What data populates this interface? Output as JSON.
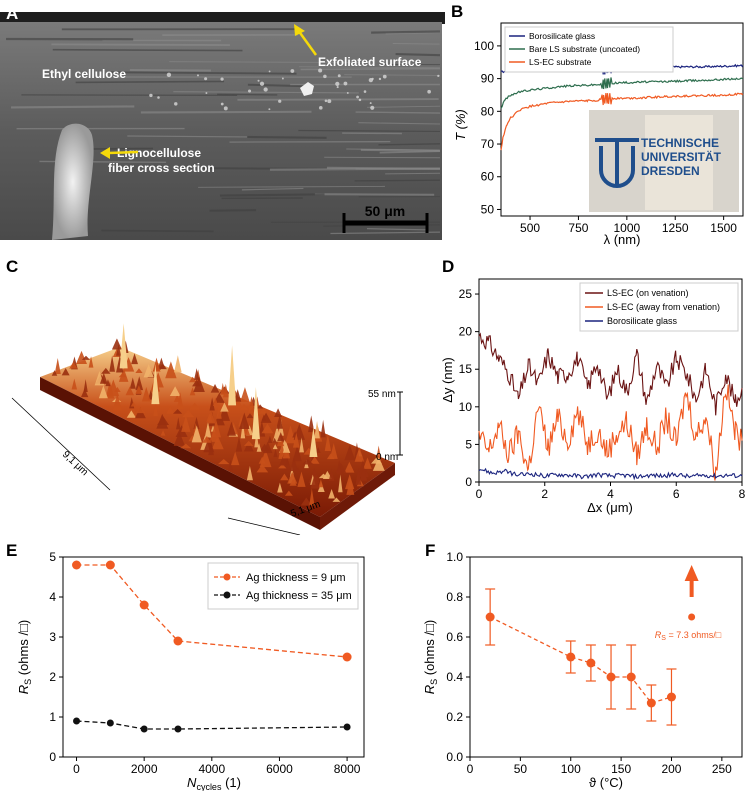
{
  "panel_labels": {
    "a": "A",
    "b": "B",
    "c": "C",
    "d": "D",
    "e": "E",
    "f": "F"
  },
  "panel_a": {
    "labels": {
      "ethyl_cellulose": "Ethyl cellulose",
      "exfoliated": "Exfoliated surface",
      "fiber_line1": "Lignocellulose",
      "fiber_line2": "fiber cross section",
      "scale_bar": "50 μm"
    },
    "arrow_color": "#f5d90a"
  },
  "panel_c": {
    "labels": {
      "z_top": "55 nm",
      "z_bottom": "0 nm",
      "x_len": "5,1 μm",
      "y_len": "9,1 μm"
    },
    "colors": {
      "low": "#7a1a05",
      "mid": "#c8501a",
      "high": "#f6cf8a"
    }
  },
  "panel_b_inset": {
    "line1": "TECHNISCHE",
    "line2": "UNIVERSITÄT",
    "line3": "DRESDEN"
  },
  "chart_data": [
    {
      "id": "B",
      "type": "line",
      "xlabel": "λ (nm)",
      "ylabel": "T (%)",
      "xlim": [
        350,
        1600
      ],
      "ylim": [
        48,
        107
      ],
      "xticks": [
        "500",
        "750",
        "1000",
        "1250",
        "1500"
      ],
      "yticks": [
        "50",
        "60",
        "70",
        "80",
        "90",
        "100"
      ],
      "legend_position": "top-left",
      "series": [
        {
          "name": "Borosilicate glass",
          "color": "#1a237e",
          "x": [
            350,
            400,
            500,
            600,
            700,
            800,
            880,
            900,
            1000,
            1100,
            1200,
            1300,
            1400,
            1500,
            1600
          ],
          "y": [
            92,
            92.6,
            92.8,
            93.0,
            93.0,
            93.1,
            93.1,
            93.3,
            93.3,
            93.5,
            93.5,
            93.6,
            93.6,
            93.8,
            94.0
          ]
        },
        {
          "name": "Bare LS substrate (uncoated)",
          "color": "#2e6e4e",
          "x": [
            350,
            370,
            400,
            450,
            500,
            600,
            700,
            800,
            880,
            900,
            1000,
            1100,
            1200,
            1300,
            1400,
            1500,
            1600
          ],
          "y": [
            81,
            83.5,
            85,
            86,
            86.5,
            87.2,
            87.8,
            88.0,
            88.3,
            88.6,
            88.8,
            89.0,
            89.1,
            89.3,
            89.5,
            89.8,
            90.0
          ]
        },
        {
          "name": "LS-EC substrate",
          "color": "#f05a22",
          "x": [
            350,
            360,
            380,
            400,
            450,
            500,
            600,
            700,
            800,
            880,
            900,
            1000,
            1100,
            1200,
            1300,
            1400,
            1500,
            1600
          ],
          "y": [
            68,
            72,
            76,
            78,
            80.5,
            81.5,
            82.5,
            83.0,
            83.2,
            83.6,
            84.0,
            84.0,
            84.2,
            84.5,
            84.7,
            84.8,
            85.0,
            85.3
          ]
        }
      ]
    },
    {
      "id": "D",
      "type": "line",
      "xlabel": "Δx (μm)",
      "ylabel": "Δy (nm)",
      "xlim": [
        0,
        8
      ],
      "ylim": [
        0,
        27
      ],
      "xticks": [
        "0",
        "2",
        "4",
        "6",
        "8"
      ],
      "yticks": [
        "0",
        "5",
        "10",
        "15",
        "20",
        "25"
      ],
      "legend_position": "top-right",
      "series": [
        {
          "name": "LS-EC (on venation)",
          "color": "#6b1414",
          "x": [
            0,
            0.3,
            0.6,
            0.9,
            1.2,
            1.5,
            1.8,
            2.1,
            2.4,
            2.7,
            3.0,
            3.3,
            3.6,
            3.9,
            4.2,
            4.5,
            4.8,
            5.1,
            5.4,
            5.7,
            6.0,
            6.3,
            6.6,
            6.9,
            7.2,
            7.5,
            7.8,
            8.0
          ],
          "y": [
            19.5,
            18.5,
            16.5,
            14.5,
            11.0,
            15.5,
            13.0,
            17.0,
            14.0,
            14.5,
            16.5,
            12.5,
            16.0,
            11.0,
            15.0,
            12.0,
            17.0,
            10.5,
            15.5,
            12.5,
            16.5,
            14.5,
            11.0,
            15.0,
            10.0,
            14.5,
            10.5,
            12.5
          ]
        },
        {
          "name": "LS-EC (away from venation)",
          "color": "#f05a22",
          "x": [
            0,
            0.3,
            0.6,
            0.9,
            1.2,
            1.5,
            1.8,
            2.1,
            2.4,
            2.7,
            3.0,
            3.3,
            3.6,
            3.9,
            4.2,
            4.5,
            4.8,
            5.1,
            5.4,
            5.7,
            6.0,
            6.3,
            6.6,
            6.9,
            7.2,
            7.5,
            7.8,
            8.0
          ],
          "y": [
            6.0,
            4.0,
            7.5,
            3.5,
            6.5,
            1.5,
            10.0,
            4.5,
            8.5,
            5.5,
            9.5,
            5.0,
            7.0,
            4.0,
            6.5,
            8.0,
            3.5,
            7.5,
            4.5,
            8.5,
            5.0,
            12.0,
            6.0,
            9.0,
            1.0,
            13.0,
            6.5,
            5.5
          ]
        },
        {
          "name": "Borosilicate glass",
          "color": "#1a237e",
          "x": [
            0,
            0.4,
            0.8,
            1.2,
            1.6,
            2.0,
            2.4,
            2.8,
            3.2,
            3.6,
            4.0,
            4.4,
            4.8,
            5.2,
            5.6,
            6.0,
            6.4,
            6.8,
            7.2,
            7.6,
            8.0
          ],
          "y": [
            1.8,
            1.2,
            1.4,
            0.9,
            1.1,
            0.8,
            1.0,
            0.9,
            0.7,
            1.0,
            0.8,
            0.9,
            0.7,
            0.9,
            0.8,
            1.0,
            0.7,
            0.9,
            0.8,
            0.9,
            0.8
          ]
        }
      ]
    },
    {
      "id": "E",
      "type": "line",
      "xlabel_main": "N",
      "xlabel_sub": "cycles",
      "xlabel_tail": " (1)",
      "ylabel_main": "R",
      "ylabel_sub": "S",
      "ylabel_tail": " (ohms /□)",
      "xlim": [
        -400,
        8500
      ],
      "ylim": [
        0,
        5
      ],
      "xticks": [
        "0",
        "2000",
        "4000",
        "6000",
        "8000"
      ],
      "yticks": [
        "0",
        "1",
        "2",
        "3",
        "4",
        "5"
      ],
      "legend_position": "top-right",
      "series": [
        {
          "name": "Ag thickness = 9 μm",
          "color": "#f05a22",
          "x": [
            0,
            1000,
            2000,
            3000,
            8000
          ],
          "y": [
            4.8,
            4.8,
            3.8,
            2.9,
            2.5
          ]
        },
        {
          "name": "Ag thickness = 35 μm",
          "color": "#111111",
          "x": [
            0,
            1000,
            2000,
            3000,
            8000
          ],
          "y": [
            0.9,
            0.85,
            0.7,
            0.7,
            0.75
          ]
        }
      ]
    },
    {
      "id": "F",
      "type": "scatter",
      "xlabel": "ϑ (°C)",
      "ylabel_main": "R",
      "ylabel_sub": "S",
      "ylabel_tail": " (ohms /□)",
      "xlim": [
        0,
        270
      ],
      "ylim": [
        0,
        1.0
      ],
      "xticks": [
        "0",
        "50",
        "100",
        "150",
        "200",
        "250"
      ],
      "yticks": [
        "0.0",
        "0.2",
        "0.4",
        "0.6",
        "0.8",
        "1.0"
      ],
      "color": "#f05a22",
      "x": [
        20,
        100,
        120,
        140,
        160,
        180,
        200
      ],
      "y": [
        0.7,
        0.5,
        0.47,
        0.4,
        0.4,
        0.27,
        0.3
      ],
      "yerr": [
        0.14,
        0.08,
        0.09,
        0.16,
        0.16,
        0.09,
        0.14
      ],
      "outlier": {
        "x": 220,
        "y": 0.7,
        "label_main": "R",
        "label_sub": "S",
        "label_tail": " = 7.3 ohms/□"
      }
    }
  ]
}
